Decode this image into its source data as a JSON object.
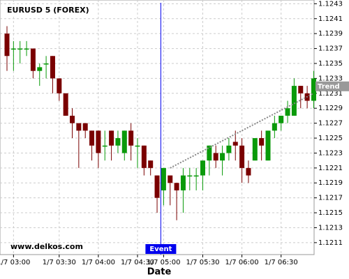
{
  "chart_data": {
    "type": "candlestick",
    "title": "EURUSD 5 (FOREX)",
    "xlabel": "Date",
    "watermark": "www.delkos.com",
    "categories": [
      null,
      "1/7 03:00",
      null,
      null,
      null,
      null,
      null,
      null,
      "1/7 03:30",
      null,
      null,
      null,
      null,
      null,
      "1/7 04:00",
      null,
      null,
      null,
      null,
      null,
      "1/7 04:30",
      null,
      null,
      null,
      "1/7 05:00",
      null,
      null,
      null,
      null,
      null,
      "1/7 05:30",
      null,
      null,
      null,
      null,
      null,
      "1/7 06:00",
      null,
      null,
      null,
      null,
      null,
      "1/7 06:30",
      null,
      null,
      null,
      null,
      null
    ],
    "open": [
      1.1239,
      1.1237,
      1.1237,
      1.1237,
      1.1237,
      1.1234,
      1.1235,
      1.1236,
      1.1233,
      1.1231,
      1.1228,
      1.1227,
      1.1227,
      1.1226,
      1.1226,
      1.1224,
      1.1226,
      1.1224,
      1.1223,
      1.1226,
      1.1224,
      1.1224,
      1.1222,
      1.122,
      1.1218,
      1.122,
      1.1219,
      1.1218,
      1.122,
      1.122,
      1.122,
      1.1222,
      1.1223,
      1.1222,
      1.1223,
      1.12245,
      1.1224,
      1.1221,
      1.1222,
      1.1225,
      1.1222,
      1.1226,
      1.1227,
      1.1228,
      1.1228,
      1.1232,
      1.1231,
      1.123
    ],
    "high": [
      1.124,
      1.1238,
      1.1238,
      1.1238,
      1.1237,
      1.1235,
      1.1236,
      1.1236,
      1.1233,
      1.1231,
      1.1229,
      1.1227,
      1.1227,
      1.1226,
      1.1226,
      1.1226,
      1.1226,
      1.1226,
      1.1226,
      1.1227,
      1.1225,
      1.1224,
      1.1222,
      1.122,
      1.1221,
      1.122,
      1.1219,
      1.1221,
      1.1221,
      1.1221,
      1.1222,
      1.1224,
      1.1224,
      1.1224,
      1.1225,
      1.1226,
      1.1225,
      1.1222,
      1.1225,
      1.1226,
      1.1226,
      1.1228,
      1.1228,
      1.123,
      1.1233,
      1.1232,
      1.1232,
      1.1234
    ],
    "low": [
      1.1234,
      1.1234,
      1.1235,
      1.1236,
      1.1233,
      1.1232,
      1.1233,
      1.1231,
      1.123,
      1.1228,
      1.1225,
      1.1221,
      1.1225,
      1.1222,
      1.1221,
      1.1222,
      1.1222,
      1.1223,
      1.1222,
      1.1222,
      1.1221,
      1.122,
      1.122,
      1.1215,
      1.1216,
      1.1216,
      1.1214,
      1.1215,
      1.1218,
      1.1218,
      1.1218,
      1.122,
      1.1221,
      1.122,
      1.1222,
      1.1222,
      1.1219,
      1.1219,
      1.1222,
      1.1222,
      1.1222,
      1.1225,
      1.1226,
      1.1227,
      1.1228,
      1.1229,
      1.1229,
      1.1229
    ],
    "close": [
      1.1236,
      1.1237,
      1.1237,
      1.1237,
      1.1234,
      1.12345,
      1.1235,
      1.1233,
      1.1231,
      1.1228,
      1.1227,
      1.1226,
      1.1226,
      1.1224,
      1.1223,
      1.1224,
      1.1224,
      1.1225,
      1.1226,
      1.1224,
      1.1224,
      1.1221,
      1.1221,
      1.1217,
      1.1221,
      1.1219,
      1.1218,
      1.122,
      1.122,
      1.122,
      1.1222,
      1.1224,
      1.1222,
      1.1223,
      1.1224,
      1.1224,
      1.1221,
      1.122,
      1.1225,
      1.1224,
      1.1226,
      1.1227,
      1.1228,
      1.1229,
      1.1232,
      1.1231,
      1.123,
      1.1233
    ],
    "up_color": "#0a9a0a",
    "down_color": "#7a0000",
    "ylim": [
      1.12094,
      1.12435
    ],
    "yticks": [
      1.1211,
      1.1213,
      1.1215,
      1.1217,
      1.1219,
      1.1221,
      1.1223,
      1.1225,
      1.1227,
      1.1229,
      1.1231,
      1.1233,
      1.1235,
      1.1237,
      1.1239,
      1.1241,
      1.1243
    ],
    "grid": true,
    "event": {
      "label": "Event",
      "at": "1/7 05:00",
      "color": "#0000ee"
    },
    "trend": {
      "label": "Trend",
      "start": 1.1221,
      "end": 1.1231
    }
  }
}
